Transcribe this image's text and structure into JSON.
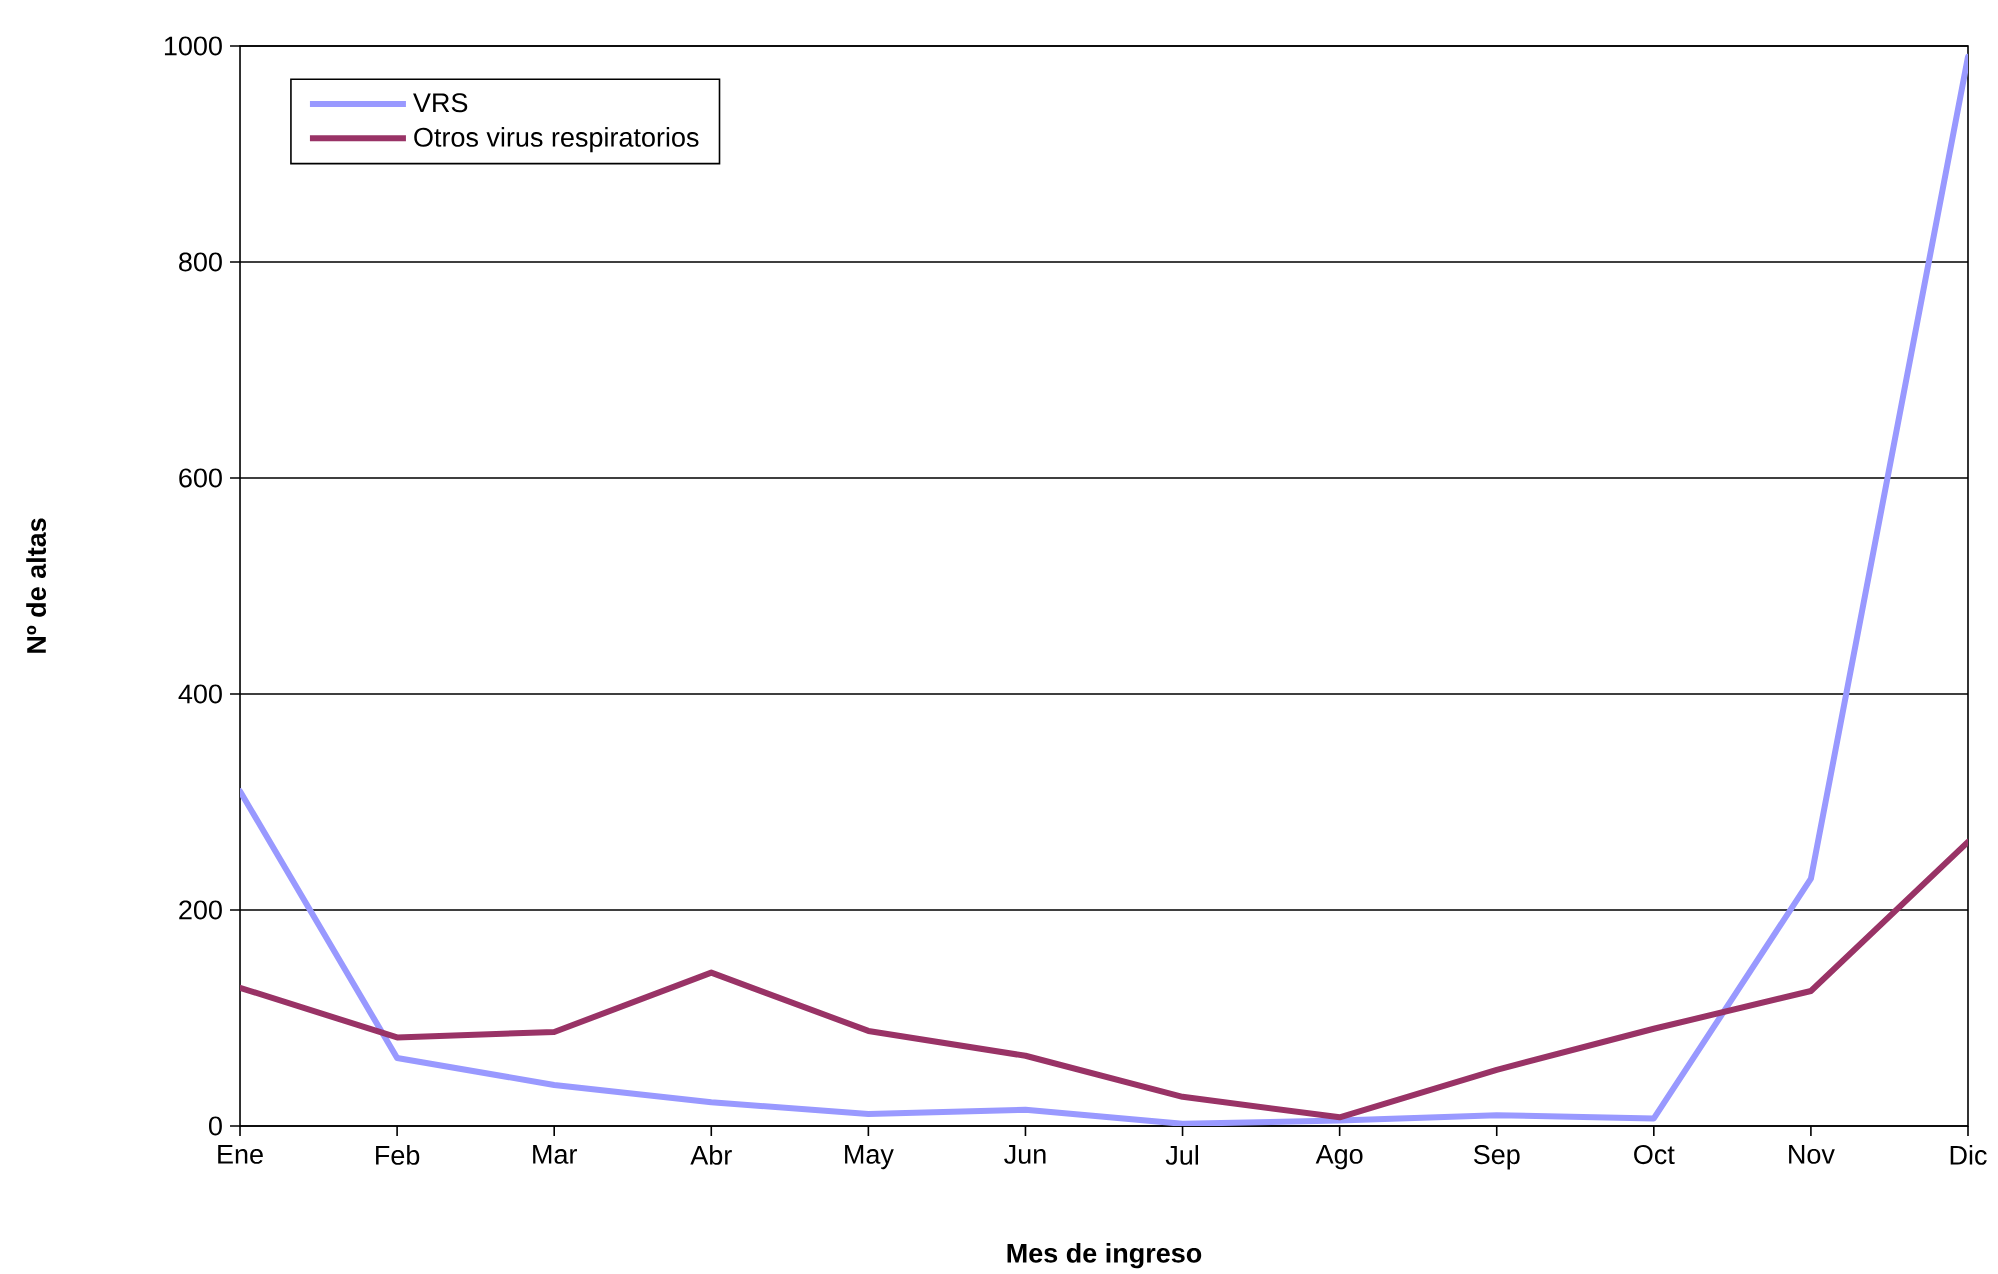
{
  "chart_data": {
    "type": "line",
    "xlabel": "Mes de ingreso",
    "ylabel": "Nº de altas",
    "categories": [
      "Ene",
      "Feb",
      "Mar",
      "Abr",
      "May",
      "Jun",
      "Jul",
      "Ago",
      "Sep",
      "Oct",
      "Nov",
      "Dic"
    ],
    "series": [
      {
        "name": "VRS",
        "color": "#9999ff",
        "values": [
          310,
          63,
          38,
          22,
          11,
          15,
          2,
          5,
          10,
          7,
          229,
          990
        ]
      },
      {
        "name": "Otros virus respiratorios",
        "color": "#993366",
        "values": [
          128,
          82,
          87,
          142,
          88,
          65,
          27,
          8,
          52,
          90,
          125,
          263
        ]
      }
    ],
    "ylim": [
      0,
      1000
    ],
    "yticks": [
      0,
      200,
      400,
      600,
      800,
      1000
    ],
    "grid": "y",
    "legend": "top left",
    "line_style": "solid"
  }
}
